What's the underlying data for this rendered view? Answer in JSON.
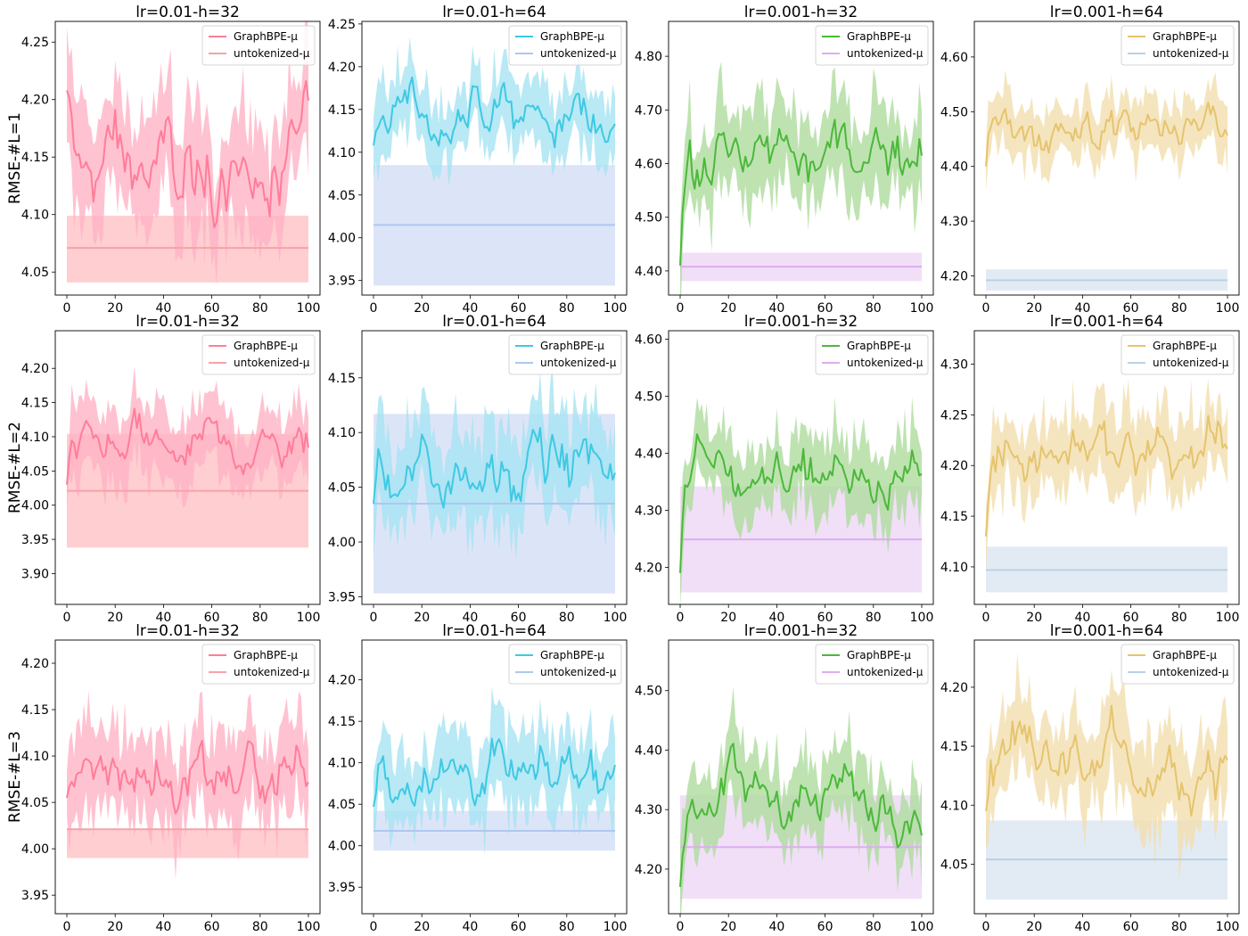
{
  "figure": {
    "row_labels": [
      "RMSE-#L=1",
      "RMSE-#L=2",
      "RMSE-#L=3"
    ],
    "legend_labels": [
      "GraphBPE-μ",
      "untokenized-μ"
    ]
  },
  "chart_data": [
    {
      "type": "line",
      "title": "lr=0.01-h=32",
      "ylabel": "RMSE-#L=1",
      "xlim": [
        0,
        100
      ],
      "ylim": [
        4.03,
        4.268
      ],
      "yticks": [
        4.05,
        4.1,
        4.15,
        4.2,
        4.25
      ],
      "xticks": [
        0,
        20,
        40,
        60,
        80,
        100
      ],
      "legend": "top-right",
      "series": [
        {
          "name": "GraphBPE-μ",
          "color": "#ff7d99",
          "fill": "#ffb3c6",
          "start": 4.208,
          "mean": 4.14,
          "noise": 0.025,
          "band": 0.045
        },
        {
          "name": "untokenized-μ",
          "color": "#f5a3a8",
          "fill": "#ffc6c9",
          "value": 4.071,
          "band_low": 4.041,
          "band_high": 4.099
        }
      ]
    },
    {
      "type": "line",
      "title": "lr=0.01-h=64",
      "xlim": [
        0,
        100
      ],
      "ylim": [
        3.933,
        4.253
      ],
      "yticks": [
        3.95,
        4.0,
        4.05,
        4.1,
        4.15,
        4.2,
        4.25
      ],
      "xticks": [
        0,
        20,
        40,
        60,
        80,
        100
      ],
      "legend": "top-right",
      "series": [
        {
          "name": "GraphBPE-μ",
          "color": "#3ec9e3",
          "fill": "#a6e4f2",
          "start": 4.108,
          "mean": 4.138,
          "noise": 0.02,
          "band": 0.038
        },
        {
          "name": "untokenized-μ",
          "color": "#aec7ee",
          "fill": "#d6e0f6",
          "value": 4.015,
          "band_low": 3.944,
          "band_high": 4.085
        }
      ]
    },
    {
      "type": "line",
      "title": "lr=0.001-h=32",
      "xlim": [
        0,
        100
      ],
      "ylim": [
        4.355,
        4.865
      ],
      "yticks": [
        4.4,
        4.5,
        4.6,
        4.7,
        4.8
      ],
      "xticks": [
        0,
        20,
        40,
        60,
        80,
        100
      ],
      "legend": "top-right",
      "series": [
        {
          "name": "GraphBPE-μ",
          "color": "#4cb83a",
          "fill": "#aedc9e",
          "start": 4.41,
          "mean": 4.62,
          "noise": 0.04,
          "band": 0.075
        },
        {
          "name": "untokenized-μ",
          "color": "#deadf0",
          "fill": "#efd9f6",
          "value": 4.408,
          "band_low": 4.381,
          "band_high": 4.434
        }
      ]
    },
    {
      "type": "line",
      "title": "lr=0.001-h=64",
      "xlim": [
        0,
        100
      ],
      "ylim": [
        4.165,
        4.665
      ],
      "yticks": [
        4.2,
        4.3,
        4.4,
        4.5,
        4.6
      ],
      "xticks": [
        0,
        20,
        40,
        60,
        80,
        100
      ],
      "legend": "top-right",
      "series": [
        {
          "name": "GraphBPE-μ",
          "color": "#e6c46e",
          "fill": "#f3dfae",
          "start": 4.4,
          "mean": 4.47,
          "noise": 0.025,
          "band": 0.045
        },
        {
          "name": "untokenized-μ",
          "color": "#b9d1e6",
          "fill": "#dde7f2",
          "value": 4.192,
          "band_low": 4.173,
          "band_high": 4.212
        }
      ]
    },
    {
      "type": "line",
      "title": "lr=0.01-h=32",
      "ylabel": "RMSE-#L=2",
      "xlim": [
        0,
        100
      ],
      "ylim": [
        3.855,
        4.255
      ],
      "yticks": [
        3.9,
        3.95,
        4.0,
        4.05,
        4.1,
        4.15,
        4.2
      ],
      "xticks": [
        0,
        20,
        40,
        60,
        80,
        100
      ],
      "legend": "top-right",
      "series": [
        {
          "name": "GraphBPE-μ",
          "color": "#ff7d99",
          "fill": "#ffb3c6",
          "start": 4.03,
          "mean": 4.085,
          "noise": 0.022,
          "band": 0.045
        },
        {
          "name": "untokenized-μ",
          "color": "#f5a3a8",
          "fill": "#ffc6c9",
          "value": 4.021,
          "band_low": 3.938,
          "band_high": 4.104
        }
      ]
    },
    {
      "type": "line",
      "title": "lr=0.01-h=64",
      "xlim": [
        0,
        100
      ],
      "ylim": [
        3.943,
        4.193
      ],
      "yticks": [
        3.95,
        4.0,
        4.05,
        4.1,
        4.15
      ],
      "xticks": [
        0,
        20,
        40,
        60,
        80,
        100
      ],
      "legend": "top-right",
      "series": [
        {
          "name": "GraphBPE-μ",
          "color": "#3ec9e3",
          "fill": "#a6e4f2",
          "start": 4.035,
          "mean": 4.07,
          "noise": 0.02,
          "band": 0.04
        },
        {
          "name": "untokenized-μ",
          "color": "#aec7ee",
          "fill": "#d6e0f6",
          "value": 4.035,
          "band_low": 3.953,
          "band_high": 4.117
        }
      ]
    },
    {
      "type": "line",
      "title": "lr=0.001-h=32",
      "xlim": [
        0,
        100
      ],
      "ylim": [
        4.135,
        4.615
      ],
      "yticks": [
        4.2,
        4.3,
        4.4,
        4.5,
        4.6
      ],
      "xticks": [
        0,
        20,
        40,
        60,
        80,
        100
      ],
      "legend": "top-right",
      "series": [
        {
          "name": "GraphBPE-μ",
          "color": "#4cb83a",
          "fill": "#aedc9e",
          "start": 4.19,
          "mean": 4.37,
          "noise": 0.03,
          "band": 0.06
        },
        {
          "name": "untokenized-μ",
          "color": "#deadf0",
          "fill": "#efd9f6",
          "value": 4.249,
          "band_low": 4.156,
          "band_high": 4.342
        }
      ]
    },
    {
      "type": "line",
      "title": "lr=0.001-h=64",
      "xlim": [
        0,
        100
      ],
      "ylim": [
        4.063,
        4.333
      ],
      "yticks": [
        4.1,
        4.15,
        4.2,
        4.25,
        4.3
      ],
      "xticks": [
        0,
        20,
        40,
        60,
        80,
        100
      ],
      "legend": "top-right",
      "series": [
        {
          "name": "GraphBPE-μ",
          "color": "#e6c46e",
          "fill": "#f3dfae",
          "start": 4.13,
          "mean": 4.215,
          "noise": 0.018,
          "band": 0.035
        },
        {
          "name": "untokenized-μ",
          "color": "#b9d1e6",
          "fill": "#dde7f2",
          "value": 4.097,
          "band_low": 4.075,
          "band_high": 4.12
        }
      ]
    },
    {
      "type": "line",
      "title": "lr=0.01-h=32",
      "ylabel": "RMSE-#L=3",
      "xlim": [
        0,
        100
      ],
      "ylim": [
        3.93,
        4.225
      ],
      "yticks": [
        3.95,
        4.0,
        4.05,
        4.1,
        4.15,
        4.2
      ],
      "xticks": [
        0,
        20,
        40,
        60,
        80,
        100
      ],
      "legend": "top-right",
      "series": [
        {
          "name": "GraphBPE-μ",
          "color": "#ff7d99",
          "fill": "#ffb3c6",
          "start": 4.055,
          "mean": 4.075,
          "noise": 0.022,
          "band": 0.045
        },
        {
          "name": "untokenized-μ",
          "color": "#f5a3a8",
          "fill": "#ffc6c9",
          "value": 4.021,
          "band_low": 3.99,
          "band_high": 4.021
        }
      ]
    },
    {
      "type": "line",
      "title": "lr=0.01-h=64",
      "xlim": [
        0,
        100
      ],
      "ylim": [
        3.918,
        4.248
      ],
      "yticks": [
        3.95,
        4.0,
        4.05,
        4.1,
        4.15,
        4.2
      ],
      "xticks": [
        0,
        20,
        40,
        60,
        80,
        100
      ],
      "legend": "top-right",
      "series": [
        {
          "name": "GraphBPE-μ",
          "color": "#3ec9e3",
          "fill": "#a6e4f2",
          "start": 4.047,
          "mean": 4.09,
          "noise": 0.022,
          "band": 0.045
        },
        {
          "name": "untokenized-μ",
          "color": "#aec7ee",
          "fill": "#d6e0f6",
          "value": 4.018,
          "band_low": 3.994,
          "band_high": 4.042
        }
      ]
    },
    {
      "type": "line",
      "title": "lr=0.001-h=32",
      "xlim": [
        0,
        100
      ],
      "ylim": [
        4.125,
        4.585
      ],
      "yticks": [
        4.2,
        4.3,
        4.4,
        4.5
      ],
      "xticks": [
        0,
        20,
        40,
        60,
        80,
        100
      ],
      "legend": "top-right",
      "series": [
        {
          "name": "GraphBPE-μ",
          "color": "#4cb83a",
          "fill": "#aedc9e",
          "start": 4.17,
          "mean": 4.32,
          "noise": 0.03,
          "band": 0.06
        },
        {
          "name": "untokenized-μ",
          "color": "#deadf0",
          "fill": "#efd9f6",
          "value": 4.237,
          "band_low": 4.15,
          "band_high": 4.324
        }
      ]
    },
    {
      "type": "line",
      "title": "lr=0.001-h=64",
      "xlim": [
        0,
        100
      ],
      "ylim": [
        4.008,
        4.24
      ],
      "yticks": [
        4.05,
        4.1,
        4.15,
        4.2
      ],
      "xticks": [
        0,
        20,
        40,
        60,
        80,
        100
      ],
      "legend": "top-right",
      "series": [
        {
          "name": "GraphBPE-μ",
          "color": "#e6c46e",
          "fill": "#f3dfae",
          "start": 4.095,
          "mean": 4.135,
          "noise": 0.018,
          "band": 0.038
        },
        {
          "name": "untokenized-μ",
          "color": "#b9d1e6",
          "fill": "#dde7f2",
          "value": 4.054,
          "band_low": 4.02,
          "band_high": 4.087
        }
      ]
    }
  ]
}
